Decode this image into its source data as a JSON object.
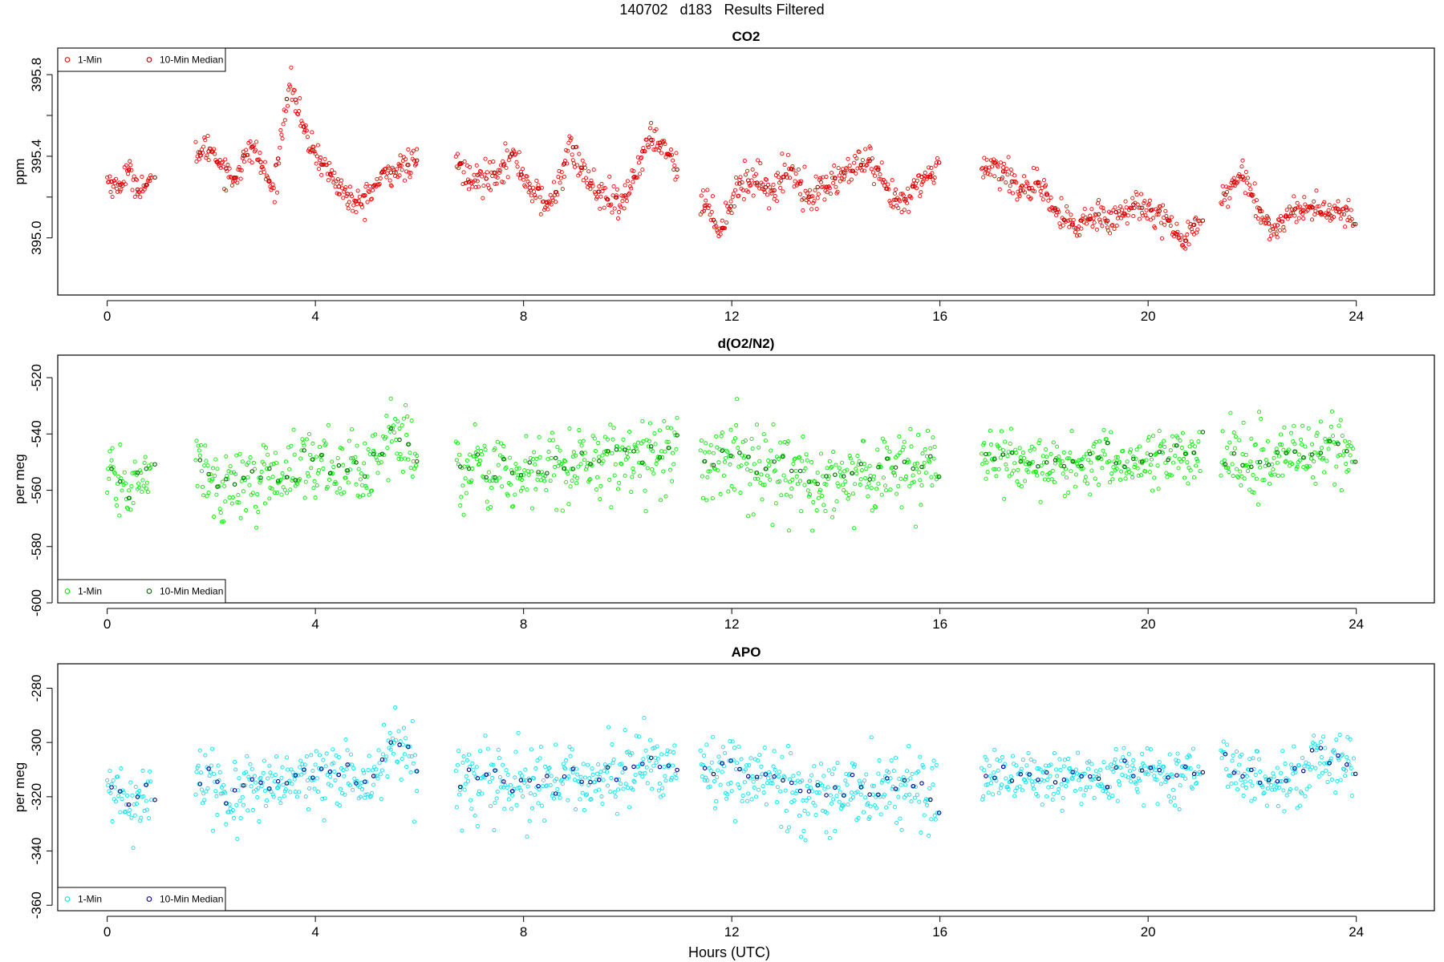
{
  "figure": {
    "title": "140702   d183   Results Filtered",
    "xlabel": "Hours (UTC)"
  },
  "colors": {
    "co2_1min": "#ff0000",
    "co2_median": "#b00000",
    "o2_1min": "#00ee00",
    "o2_median": "#006400",
    "apo_1min": "#00e5ee",
    "apo_median": "#00008b"
  },
  "chart_data": [
    {
      "type": "scatter",
      "title": "CO2",
      "ylabel": "ppm",
      "xlabel": "",
      "xlim": [
        -0.95,
        25.5
      ],
      "ylim": [
        394.72,
        395.93
      ],
      "xticks": [
        0,
        4,
        8,
        12,
        16,
        20,
        24
      ],
      "xtick_labels": [
        "0",
        "4",
        "8",
        "12",
        "16",
        "20",
        "24"
      ],
      "yticks": [
        395.0,
        395.2,
        395.4,
        395.6,
        395.8
      ],
      "ytick_labels": [
        "395.0",
        "",
        "395.4",
        "",
        "395.8"
      ],
      "legend": {
        "position": "top-left",
        "entries": [
          "1-Min",
          "10-Min Median"
        ]
      },
      "series": [
        {
          "name": "1-Min",
          "color": "#ff0000",
          "segments": [
            {
              "x_start": 0.0,
              "x_end": 0.85,
              "anchors": [
                [
                  0.0,
                  395.29
                ],
                [
                  0.2,
                  395.24
                ],
                [
                  0.4,
                  395.33
                ],
                [
                  0.6,
                  395.25
                ],
                [
                  0.85,
                  395.26
                ]
              ],
              "noise": 0.03
            },
            {
              "x_start": 1.7,
              "x_end": 5.95,
              "anchors": [
                [
                  1.7,
                  395.42
                ],
                [
                  2.0,
                  395.44
                ],
                [
                  2.4,
                  395.28
                ],
                [
                  2.8,
                  395.45
                ],
                [
                  3.2,
                  395.22
                ],
                [
                  3.5,
                  395.78
                ],
                [
                  3.8,
                  395.5
                ],
                [
                  4.2,
                  395.34
                ],
                [
                  4.5,
                  395.24
                ],
                [
                  4.8,
                  395.15
                ],
                [
                  5.1,
                  395.24
                ],
                [
                  5.4,
                  395.32
                ],
                [
                  5.95,
                  395.37
                ]
              ],
              "noise": 0.035
            },
            {
              "x_start": 6.7,
              "x_end": 10.95,
              "anchors": [
                [
                  6.7,
                  395.38
                ],
                [
                  7.0,
                  395.27
                ],
                [
                  7.4,
                  395.32
                ],
                [
                  7.8,
                  395.4
                ],
                [
                  8.2,
                  395.22
                ],
                [
                  8.5,
                  395.15
                ],
                [
                  8.9,
                  395.44
                ],
                [
                  9.2,
                  395.3
                ],
                [
                  9.5,
                  395.2
                ],
                [
                  9.9,
                  395.15
                ],
                [
                  10.2,
                  395.36
                ],
                [
                  10.5,
                  395.5
                ],
                [
                  10.8,
                  395.42
                ],
                [
                  10.95,
                  395.33
                ]
              ],
              "noise": 0.04
            },
            {
              "x_start": 11.4,
              "x_end": 15.95,
              "anchors": [
                [
                  11.4,
                  395.2
                ],
                [
                  11.8,
                  395.05
                ],
                [
                  12.1,
                  395.25
                ],
                [
                  12.5,
                  395.3
                ],
                [
                  12.8,
                  395.22
                ],
                [
                  13.1,
                  395.35
                ],
                [
                  13.5,
                  395.2
                ],
                [
                  13.8,
                  395.25
                ],
                [
                  14.2,
                  395.32
                ],
                [
                  14.6,
                  395.38
                ],
                [
                  15.0,
                  395.22
                ],
                [
                  15.3,
                  395.15
                ],
                [
                  15.6,
                  395.28
                ],
                [
                  15.95,
                  395.32
                ]
              ],
              "noise": 0.04
            },
            {
              "x_start": 16.8,
              "x_end": 21.0,
              "anchors": [
                [
                  16.8,
                  395.38
                ],
                [
                  17.2,
                  395.32
                ],
                [
                  17.6,
                  395.25
                ],
                [
                  18.0,
                  395.22
                ],
                [
                  18.3,
                  395.1
                ],
                [
                  18.6,
                  395.05
                ],
                [
                  19.0,
                  395.12
                ],
                [
                  19.4,
                  395.1
                ],
                [
                  19.8,
                  395.16
                ],
                [
                  20.2,
                  395.14
                ],
                [
                  20.6,
                  394.98
                ],
                [
                  21.0,
                  395.1
                ]
              ],
              "noise": 0.04
            },
            {
              "x_start": 21.4,
              "x_end": 23.95,
              "anchors": [
                [
                  21.4,
                  395.18
                ],
                [
                  21.8,
                  395.32
                ],
                [
                  22.1,
                  395.15
                ],
                [
                  22.4,
                  395.03
                ],
                [
                  22.8,
                  395.14
                ],
                [
                  23.2,
                  395.15
                ],
                [
                  23.6,
                  395.12
                ],
                [
                  23.95,
                  395.1
                ]
              ],
              "noise": 0.03
            }
          ]
        },
        {
          "name": "10-Min Median",
          "color": "#b00000",
          "step": 0.1667
        }
      ]
    },
    {
      "type": "scatter",
      "title": "d(O2/N2)",
      "ylabel": "per meg",
      "xlabel": "",
      "xlim": [
        -0.95,
        25.5
      ],
      "ylim": [
        -600,
        -512
      ],
      "xticks": [
        0,
        4,
        8,
        12,
        16,
        20,
        24
      ],
      "xtick_labels": [
        "0",
        "4",
        "8",
        "12",
        "16",
        "20",
        "24"
      ],
      "yticks": [
        -600,
        -580,
        -560,
        -540,
        -520
      ],
      "ytick_labels": [
        "-600",
        "-580",
        "-560",
        "-540",
        "-520"
      ],
      "legend": {
        "position": "bottom-left",
        "entries": [
          "1-Min",
          "10-Min Median"
        ]
      },
      "series": [
        {
          "name": "1-Min",
          "color": "#00ee00",
          "segments": [
            {
              "x_start": 0.0,
              "x_end": 0.85,
              "anchors": [
                [
                  0.0,
                  -555
                ],
                [
                  0.4,
                  -560
                ],
                [
                  0.85,
                  -554
                ]
              ],
              "noise": 5
            },
            {
              "x_start": 1.7,
              "x_end": 5.95,
              "anchors": [
                [
                  1.7,
                  -550
                ],
                [
                  2.2,
                  -560
                ],
                [
                  3.0,
                  -556
                ],
                [
                  4.0,
                  -550
                ],
                [
                  5.0,
                  -553
                ],
                [
                  5.5,
                  -540
                ],
                [
                  5.95,
                  -548
                ]
              ],
              "noise": 6
            },
            {
              "x_start": 6.7,
              "x_end": 10.95,
              "anchors": [
                [
                  6.7,
                  -552
                ],
                [
                  8.0,
                  -555
                ],
                [
                  9.5,
                  -548
                ],
                [
                  10.95,
                  -547
                ]
              ],
              "noise": 7
            },
            {
              "x_start": 11.4,
              "x_end": 15.95,
              "anchors": [
                [
                  11.4,
                  -548
                ],
                [
                  12.5,
                  -552
                ],
                [
                  13.4,
                  -558
                ],
                [
                  14.5,
                  -554
                ],
                [
                  15.95,
                  -552
                ]
              ],
              "noise": 7
            },
            {
              "x_start": 16.8,
              "x_end": 21.0,
              "anchors": [
                [
                  16.8,
                  -548
                ],
                [
                  18.0,
                  -552
                ],
                [
                  19.5,
                  -550
                ],
                [
                  21.0,
                  -548
                ]
              ],
              "noise": 5
            },
            {
              "x_start": 21.4,
              "x_end": 23.95,
              "anchors": [
                [
                  21.4,
                  -548
                ],
                [
                  22.5,
                  -550
                ],
                [
                  23.5,
                  -545
                ],
                [
                  23.95,
                  -546
                ]
              ],
              "noise": 6
            }
          ]
        },
        {
          "name": "10-Min Median",
          "color": "#006400",
          "step": 0.1667
        }
      ]
    },
    {
      "type": "scatter",
      "title": "APO",
      "ylabel": "per meg",
      "xlabel": "Hours (UTC)",
      "xlim": [
        -0.95,
        25.5
      ],
      "ylim": [
        -362,
        -271
      ],
      "xticks": [
        0,
        4,
        8,
        12,
        16,
        20,
        24
      ],
      "xtick_labels": [
        "0",
        "4",
        "8",
        "12",
        "16",
        "20",
        "24"
      ],
      "yticks": [
        -360,
        -340,
        -320,
        -300,
        -280
      ],
      "ytick_labels": [
        "-360",
        "-340",
        "-320",
        "-300",
        "-280"
      ],
      "legend": {
        "position": "bottom-left",
        "entries": [
          "1-Min",
          "10-Min Median"
        ]
      },
      "series": [
        {
          "name": "1-Min",
          "color": "#00e5ee",
          "segments": [
            {
              "x_start": 0.0,
              "x_end": 0.85,
              "anchors": [
                [
                  0.0,
                  -318
                ],
                [
                  0.4,
                  -322
                ],
                [
                  0.85,
                  -318
                ]
              ],
              "noise": 5
            },
            {
              "x_start": 1.7,
              "x_end": 5.95,
              "anchors": [
                [
                  1.7,
                  -310
                ],
                [
                  2.2,
                  -320
                ],
                [
                  3.0,
                  -318
                ],
                [
                  4.0,
                  -312
                ],
                [
                  5.0,
                  -315
                ],
                [
                  5.5,
                  -300
                ],
                [
                  5.95,
                  -310
                ]
              ],
              "noise": 6
            },
            {
              "x_start": 6.7,
              "x_end": 10.95,
              "anchors": [
                [
                  6.7,
                  -315
                ],
                [
                  8.0,
                  -317
                ],
                [
                  9.5,
                  -312
                ],
                [
                  10.95,
                  -308
                ]
              ],
              "noise": 7
            },
            {
              "x_start": 11.4,
              "x_end": 15.95,
              "anchors": [
                [
                  11.4,
                  -310
                ],
                [
                  12.5,
                  -313
                ],
                [
                  13.4,
                  -320
                ],
                [
                  14.5,
                  -317
                ],
                [
                  15.95,
                  -315
                ]
              ],
              "noise": 7
            },
            {
              "x_start": 16.8,
              "x_end": 21.0,
              "anchors": [
                [
                  16.8,
                  -312
                ],
                [
                  18.0,
                  -314
                ],
                [
                  19.5,
                  -313
                ],
                [
                  21.0,
                  -312
                ]
              ],
              "noise": 5
            },
            {
              "x_start": 21.4,
              "x_end": 23.95,
              "anchors": [
                [
                  21.4,
                  -310
                ],
                [
                  22.5,
                  -313
                ],
                [
                  23.5,
                  -308
                ],
                [
                  23.95,
                  -309
                ]
              ],
              "noise": 6
            }
          ]
        },
        {
          "name": "10-Min Median",
          "color": "#00008b",
          "step": 0.1667
        }
      ]
    }
  ]
}
